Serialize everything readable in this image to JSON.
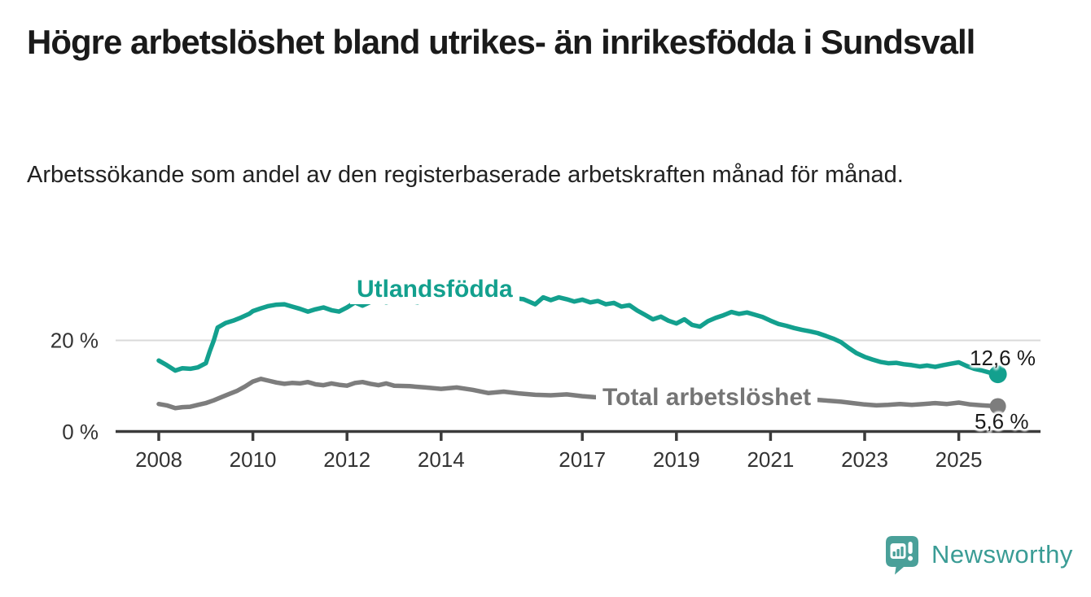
{
  "header": {
    "title": "Högre arbetslöshet bland utrikes- än inrikesfödda i Sundsvall",
    "subtitle": "Arbetssökande som andel av den registerbaserade arbetskraften månad för månad."
  },
  "chart_data": {
    "type": "line",
    "title": "Högre arbetslöshet bland utrikes- än inrikesfödda i Sundsvall",
    "subtitle": "Arbetssökande som andel av den registerbaserade arbetskraften månad för månad.",
    "unit": "%",
    "grid": "horizontal, only at 20 %",
    "legend_position": "inline-labels",
    "colors": {
      "accent_teal": "#13a08e",
      "series_gray": "#7d7d7d",
      "axis": "#3b3b3b",
      "gridline": "#d9d9d9",
      "tick_text": "#333333"
    },
    "x_axis": {
      "tick_years": [
        2008,
        2010,
        2012,
        2014,
        2017,
        2019,
        2021,
        2023,
        2025
      ]
    },
    "y_axis": {
      "ticks": [
        {
          "value": 20,
          "label": "20 %"
        },
        {
          "value": 0,
          "label": "0 %"
        }
      ],
      "range": [
        0,
        32
      ]
    },
    "series": [
      {
        "name": "Utlandsfödda",
        "inline_label": "Utlandsfödda",
        "color": "#13a08e",
        "end_value": 12.6,
        "end_label": "12,6 %",
        "points": [
          [
            2008.0,
            15.6
          ],
          [
            2008.17,
            14.6
          ],
          [
            2008.35,
            13.4
          ],
          [
            2008.5,
            13.9
          ],
          [
            2008.67,
            13.8
          ],
          [
            2008.83,
            14.1
          ],
          [
            2009.0,
            15.0
          ],
          [
            2009.08,
            17.5
          ],
          [
            2009.17,
            20.0
          ],
          [
            2009.25,
            22.8
          ],
          [
            2009.42,
            23.8
          ],
          [
            2009.58,
            24.3
          ],
          [
            2009.75,
            25.0
          ],
          [
            2009.92,
            25.8
          ],
          [
            2010.0,
            26.4
          ],
          [
            2010.17,
            27.0
          ],
          [
            2010.33,
            27.5
          ],
          [
            2010.5,
            27.8
          ],
          [
            2010.67,
            27.9
          ],
          [
            2010.83,
            27.4
          ],
          [
            2011.0,
            26.9
          ],
          [
            2011.17,
            26.3
          ],
          [
            2011.33,
            26.8
          ],
          [
            2011.5,
            27.2
          ],
          [
            2011.67,
            26.6
          ],
          [
            2011.83,
            26.3
          ],
          [
            2012.0,
            27.2
          ],
          [
            2012.17,
            28.3
          ],
          [
            2012.33,
            27.6
          ],
          [
            2012.5,
            28.4
          ],
          [
            2012.67,
            28.9
          ],
          [
            2012.83,
            28.3
          ],
          [
            2013.0,
            28.7
          ],
          [
            2013.17,
            29.2
          ],
          [
            2013.33,
            28.6
          ],
          [
            2013.5,
            28.3
          ],
          [
            2013.67,
            28.9
          ],
          [
            2013.83,
            28.5
          ],
          [
            2014.0,
            29.0
          ],
          [
            2014.25,
            28.6
          ],
          [
            2014.5,
            29.1
          ],
          [
            2014.75,
            28.8
          ],
          [
            2015.0,
            29.2
          ],
          [
            2015.25,
            28.9
          ],
          [
            2015.5,
            29.3
          ],
          [
            2015.75,
            29.0
          ],
          [
            2016.0,
            27.9
          ],
          [
            2016.17,
            29.4
          ],
          [
            2016.33,
            28.8
          ],
          [
            2016.5,
            29.4
          ],
          [
            2016.67,
            29.0
          ],
          [
            2016.83,
            28.5
          ],
          [
            2017.0,
            28.9
          ],
          [
            2017.17,
            28.3
          ],
          [
            2017.33,
            28.6
          ],
          [
            2017.5,
            27.9
          ],
          [
            2017.67,
            28.2
          ],
          [
            2017.83,
            27.4
          ],
          [
            2018.0,
            27.7
          ],
          [
            2018.17,
            26.5
          ],
          [
            2018.33,
            25.6
          ],
          [
            2018.5,
            24.6
          ],
          [
            2018.67,
            25.2
          ],
          [
            2018.83,
            24.3
          ],
          [
            2019.0,
            23.7
          ],
          [
            2019.17,
            24.6
          ],
          [
            2019.33,
            23.4
          ],
          [
            2019.5,
            23.0
          ],
          [
            2019.67,
            24.2
          ],
          [
            2019.83,
            24.9
          ],
          [
            2020.0,
            25.5
          ],
          [
            2020.17,
            26.2
          ],
          [
            2020.33,
            25.8
          ],
          [
            2020.5,
            26.1
          ],
          [
            2020.67,
            25.6
          ],
          [
            2020.83,
            25.1
          ],
          [
            2021.0,
            24.3
          ],
          [
            2021.17,
            23.6
          ],
          [
            2021.33,
            23.2
          ],
          [
            2021.5,
            22.7
          ],
          [
            2021.67,
            22.3
          ],
          [
            2021.83,
            22.0
          ],
          [
            2022.0,
            21.6
          ],
          [
            2022.17,
            21.0
          ],
          [
            2022.33,
            20.4
          ],
          [
            2022.5,
            19.6
          ],
          [
            2022.67,
            18.3
          ],
          [
            2022.83,
            17.2
          ],
          [
            2023.0,
            16.4
          ],
          [
            2023.17,
            15.8
          ],
          [
            2023.33,
            15.3
          ],
          [
            2023.5,
            15.0
          ],
          [
            2023.67,
            15.1
          ],
          [
            2023.83,
            14.8
          ],
          [
            2024.0,
            14.6
          ],
          [
            2024.17,
            14.3
          ],
          [
            2024.33,
            14.5
          ],
          [
            2024.5,
            14.2
          ],
          [
            2024.67,
            14.6
          ],
          [
            2024.83,
            14.9
          ],
          [
            2025.0,
            15.2
          ],
          [
            2025.17,
            14.4
          ],
          [
            2025.33,
            13.8
          ],
          [
            2025.5,
            13.4
          ],
          [
            2025.67,
            12.9
          ],
          [
            2025.83,
            12.6
          ]
        ]
      },
      {
        "name": "Total arbetslöshet",
        "inline_label": "Total arbetslöshet",
        "color": "#7d7d7d",
        "end_value": 5.6,
        "end_label": "5,6 %",
        "points": [
          [
            2008.0,
            6.1
          ],
          [
            2008.17,
            5.8
          ],
          [
            2008.35,
            5.2
          ],
          [
            2008.5,
            5.4
          ],
          [
            2008.67,
            5.5
          ],
          [
            2008.83,
            5.9
          ],
          [
            2009.0,
            6.3
          ],
          [
            2009.17,
            6.9
          ],
          [
            2009.33,
            7.6
          ],
          [
            2009.5,
            8.3
          ],
          [
            2009.67,
            9.0
          ],
          [
            2009.83,
            9.9
          ],
          [
            2010.0,
            11.0
          ],
          [
            2010.17,
            11.6
          ],
          [
            2010.33,
            11.2
          ],
          [
            2010.5,
            10.8
          ],
          [
            2010.67,
            10.5
          ],
          [
            2010.83,
            10.7
          ],
          [
            2011.0,
            10.6
          ],
          [
            2011.17,
            10.9
          ],
          [
            2011.33,
            10.4
          ],
          [
            2011.5,
            10.2
          ],
          [
            2011.67,
            10.6
          ],
          [
            2011.83,
            10.3
          ],
          [
            2012.0,
            10.1
          ],
          [
            2012.17,
            10.7
          ],
          [
            2012.33,
            10.9
          ],
          [
            2012.5,
            10.5
          ],
          [
            2012.67,
            10.2
          ],
          [
            2012.83,
            10.6
          ],
          [
            2013.0,
            10.1
          ],
          [
            2013.33,
            10.0
          ],
          [
            2013.67,
            9.7
          ],
          [
            2014.0,
            9.4
          ],
          [
            2014.33,
            9.7
          ],
          [
            2014.67,
            9.2
          ],
          [
            2015.0,
            8.5
          ],
          [
            2015.33,
            8.8
          ],
          [
            2015.67,
            8.4
          ],
          [
            2016.0,
            8.1
          ],
          [
            2016.33,
            8.0
          ],
          [
            2016.67,
            8.2
          ],
          [
            2017.0,
            7.8
          ],
          [
            2017.25,
            7.6
          ],
          [
            2017.5,
            7.5
          ],
          [
            2018.0,
            7.3
          ],
          [
            2018.5,
            7.1
          ],
          [
            2019.0,
            7.0
          ],
          [
            2019.5,
            7.2
          ],
          [
            2020.0,
            7.8
          ],
          [
            2020.5,
            8.1
          ],
          [
            2021.0,
            7.8
          ],
          [
            2021.5,
            7.4
          ],
          [
            2022.0,
            7.0
          ],
          [
            2022.25,
            6.8
          ],
          [
            2022.5,
            6.6
          ],
          [
            2022.75,
            6.3
          ],
          [
            2023.0,
            6.0
          ],
          [
            2023.25,
            5.8
          ],
          [
            2023.5,
            5.9
          ],
          [
            2023.75,
            6.1
          ],
          [
            2024.0,
            5.9
          ],
          [
            2024.25,
            6.1
          ],
          [
            2024.5,
            6.3
          ],
          [
            2024.75,
            6.1
          ],
          [
            2025.0,
            6.4
          ],
          [
            2025.25,
            6.0
          ],
          [
            2025.5,
            5.8
          ],
          [
            2025.83,
            5.6
          ]
        ]
      }
    ]
  },
  "footer": {
    "brand_name": "Newsworthy",
    "logo_icon": "speech-bubble-bar-chart",
    "brand_color": "#3a9c95"
  }
}
